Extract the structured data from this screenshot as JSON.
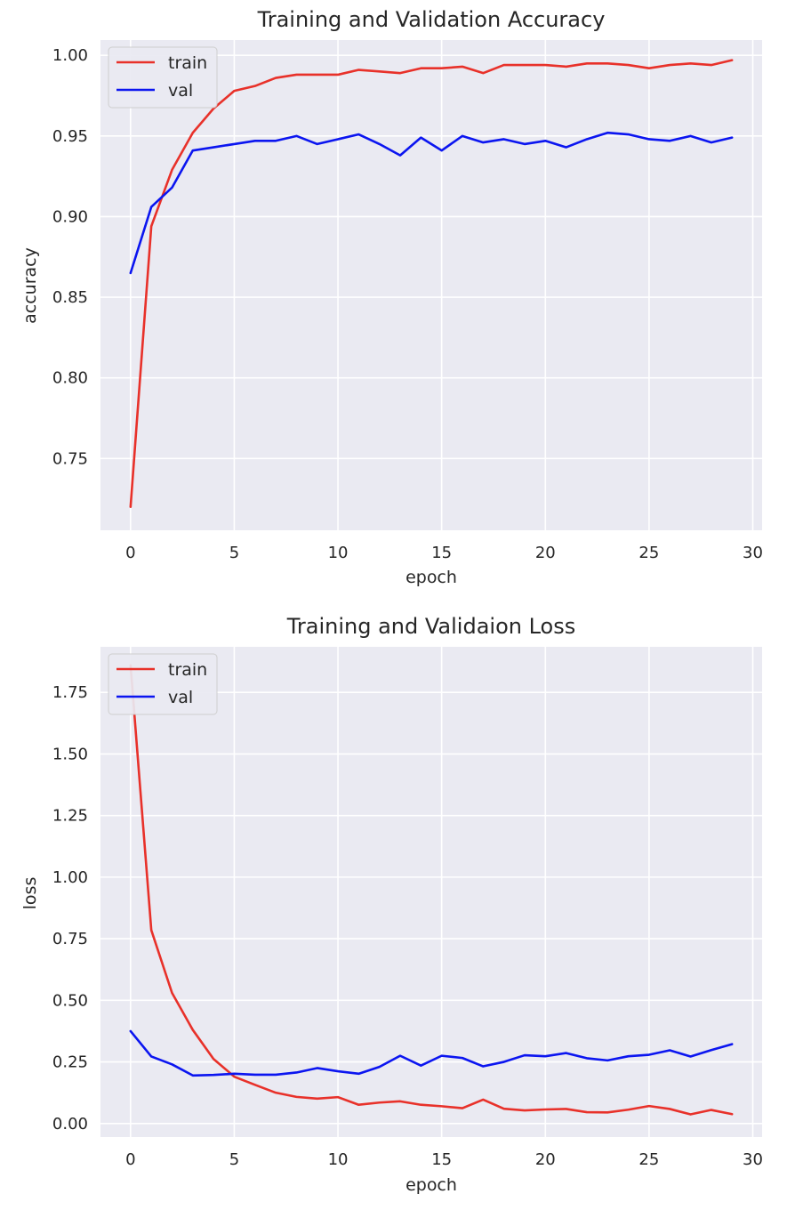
{
  "chart_data": [
    {
      "type": "line",
      "title": "Training and Validation Accuracy",
      "xlabel": "epoch",
      "ylabel": "accuracy",
      "xlim": [
        -1.45,
        30.45
      ],
      "ylim": [
        0.7055,
        1.0095
      ],
      "x_ticks": [
        0,
        5,
        10,
        15,
        20,
        25,
        30
      ],
      "y_ticks": [
        0.75,
        0.8,
        0.85,
        0.9,
        0.95,
        1.0
      ],
      "y_tick_labels": [
        "0.75",
        "0.80",
        "0.85",
        "0.90",
        "0.95",
        "1.00"
      ],
      "grid": true,
      "legend_position": "upper-left",
      "x": [
        0,
        1,
        2,
        3,
        4,
        5,
        6,
        7,
        8,
        9,
        10,
        11,
        12,
        13,
        14,
        15,
        16,
        17,
        18,
        19,
        20,
        21,
        22,
        23,
        24,
        25,
        26,
        27,
        28,
        29
      ],
      "series": [
        {
          "name": "train",
          "color": "#e8312a",
          "values": [
            0.72,
            0.894,
            0.929,
            0.952,
            0.967,
            0.978,
            0.981,
            0.986,
            0.988,
            0.988,
            0.988,
            0.991,
            0.99,
            0.989,
            0.992,
            0.992,
            0.993,
            0.989,
            0.994,
            0.994,
            0.994,
            0.993,
            0.995,
            0.995,
            0.994,
            0.992,
            0.994,
            0.995,
            0.994,
            0.997
          ]
        },
        {
          "name": "val",
          "color": "#0b15f0",
          "values": [
            0.865,
            0.906,
            0.918,
            0.941,
            0.943,
            0.945,
            0.947,
            0.947,
            0.95,
            0.945,
            0.948,
            0.951,
            0.945,
            0.938,
            0.949,
            0.941,
            0.95,
            0.946,
            0.948,
            0.945,
            0.947,
            0.943,
            0.948,
            0.952,
            0.951,
            0.948,
            0.947,
            0.95,
            0.946,
            0.949
          ]
        }
      ]
    },
    {
      "type": "line",
      "title": "Training and Validaion Loss",
      "xlabel": "epoch",
      "ylabel": "loss",
      "xlim": [
        -1.45,
        30.45
      ],
      "ylim": [
        -0.055,
        1.935
      ],
      "x_ticks": [
        0,
        5,
        10,
        15,
        20,
        25,
        30
      ],
      "y_ticks": [
        0.0,
        0.25,
        0.5,
        0.75,
        1.0,
        1.25,
        1.5,
        1.75
      ],
      "y_tick_labels": [
        "0.00",
        "0.25",
        "0.50",
        "0.75",
        "1.00",
        "1.25",
        "1.50",
        "1.75"
      ],
      "grid": true,
      "legend_position": "upper-left",
      "x": [
        0,
        1,
        2,
        3,
        4,
        5,
        6,
        7,
        8,
        9,
        10,
        11,
        12,
        13,
        14,
        15,
        16,
        17,
        18,
        19,
        20,
        21,
        22,
        23,
        24,
        25,
        26,
        27,
        28,
        29
      ],
      "series": [
        {
          "name": "train",
          "color": "#e8312a",
          "values": [
            1.86,
            0.785,
            0.53,
            0.38,
            0.262,
            0.19,
            0.157,
            0.125,
            0.108,
            0.101,
            0.107,
            0.076,
            0.085,
            0.09,
            0.076,
            0.07,
            0.062,
            0.097,
            0.06,
            0.053,
            0.057,
            0.059,
            0.046,
            0.045,
            0.056,
            0.071,
            0.059,
            0.037,
            0.055,
            0.038
          ]
        },
        {
          "name": "val",
          "color": "#0b15f0",
          "values": [
            0.375,
            0.272,
            0.24,
            0.195,
            0.197,
            0.202,
            0.198,
            0.198,
            0.207,
            0.225,
            0.212,
            0.202,
            0.23,
            0.275,
            0.235,
            0.275,
            0.266,
            0.232,
            0.25,
            0.277,
            0.273,
            0.286,
            0.265,
            0.256,
            0.273,
            0.279,
            0.297,
            0.272,
            0.298,
            0.322
          ]
        }
      ]
    }
  ]
}
